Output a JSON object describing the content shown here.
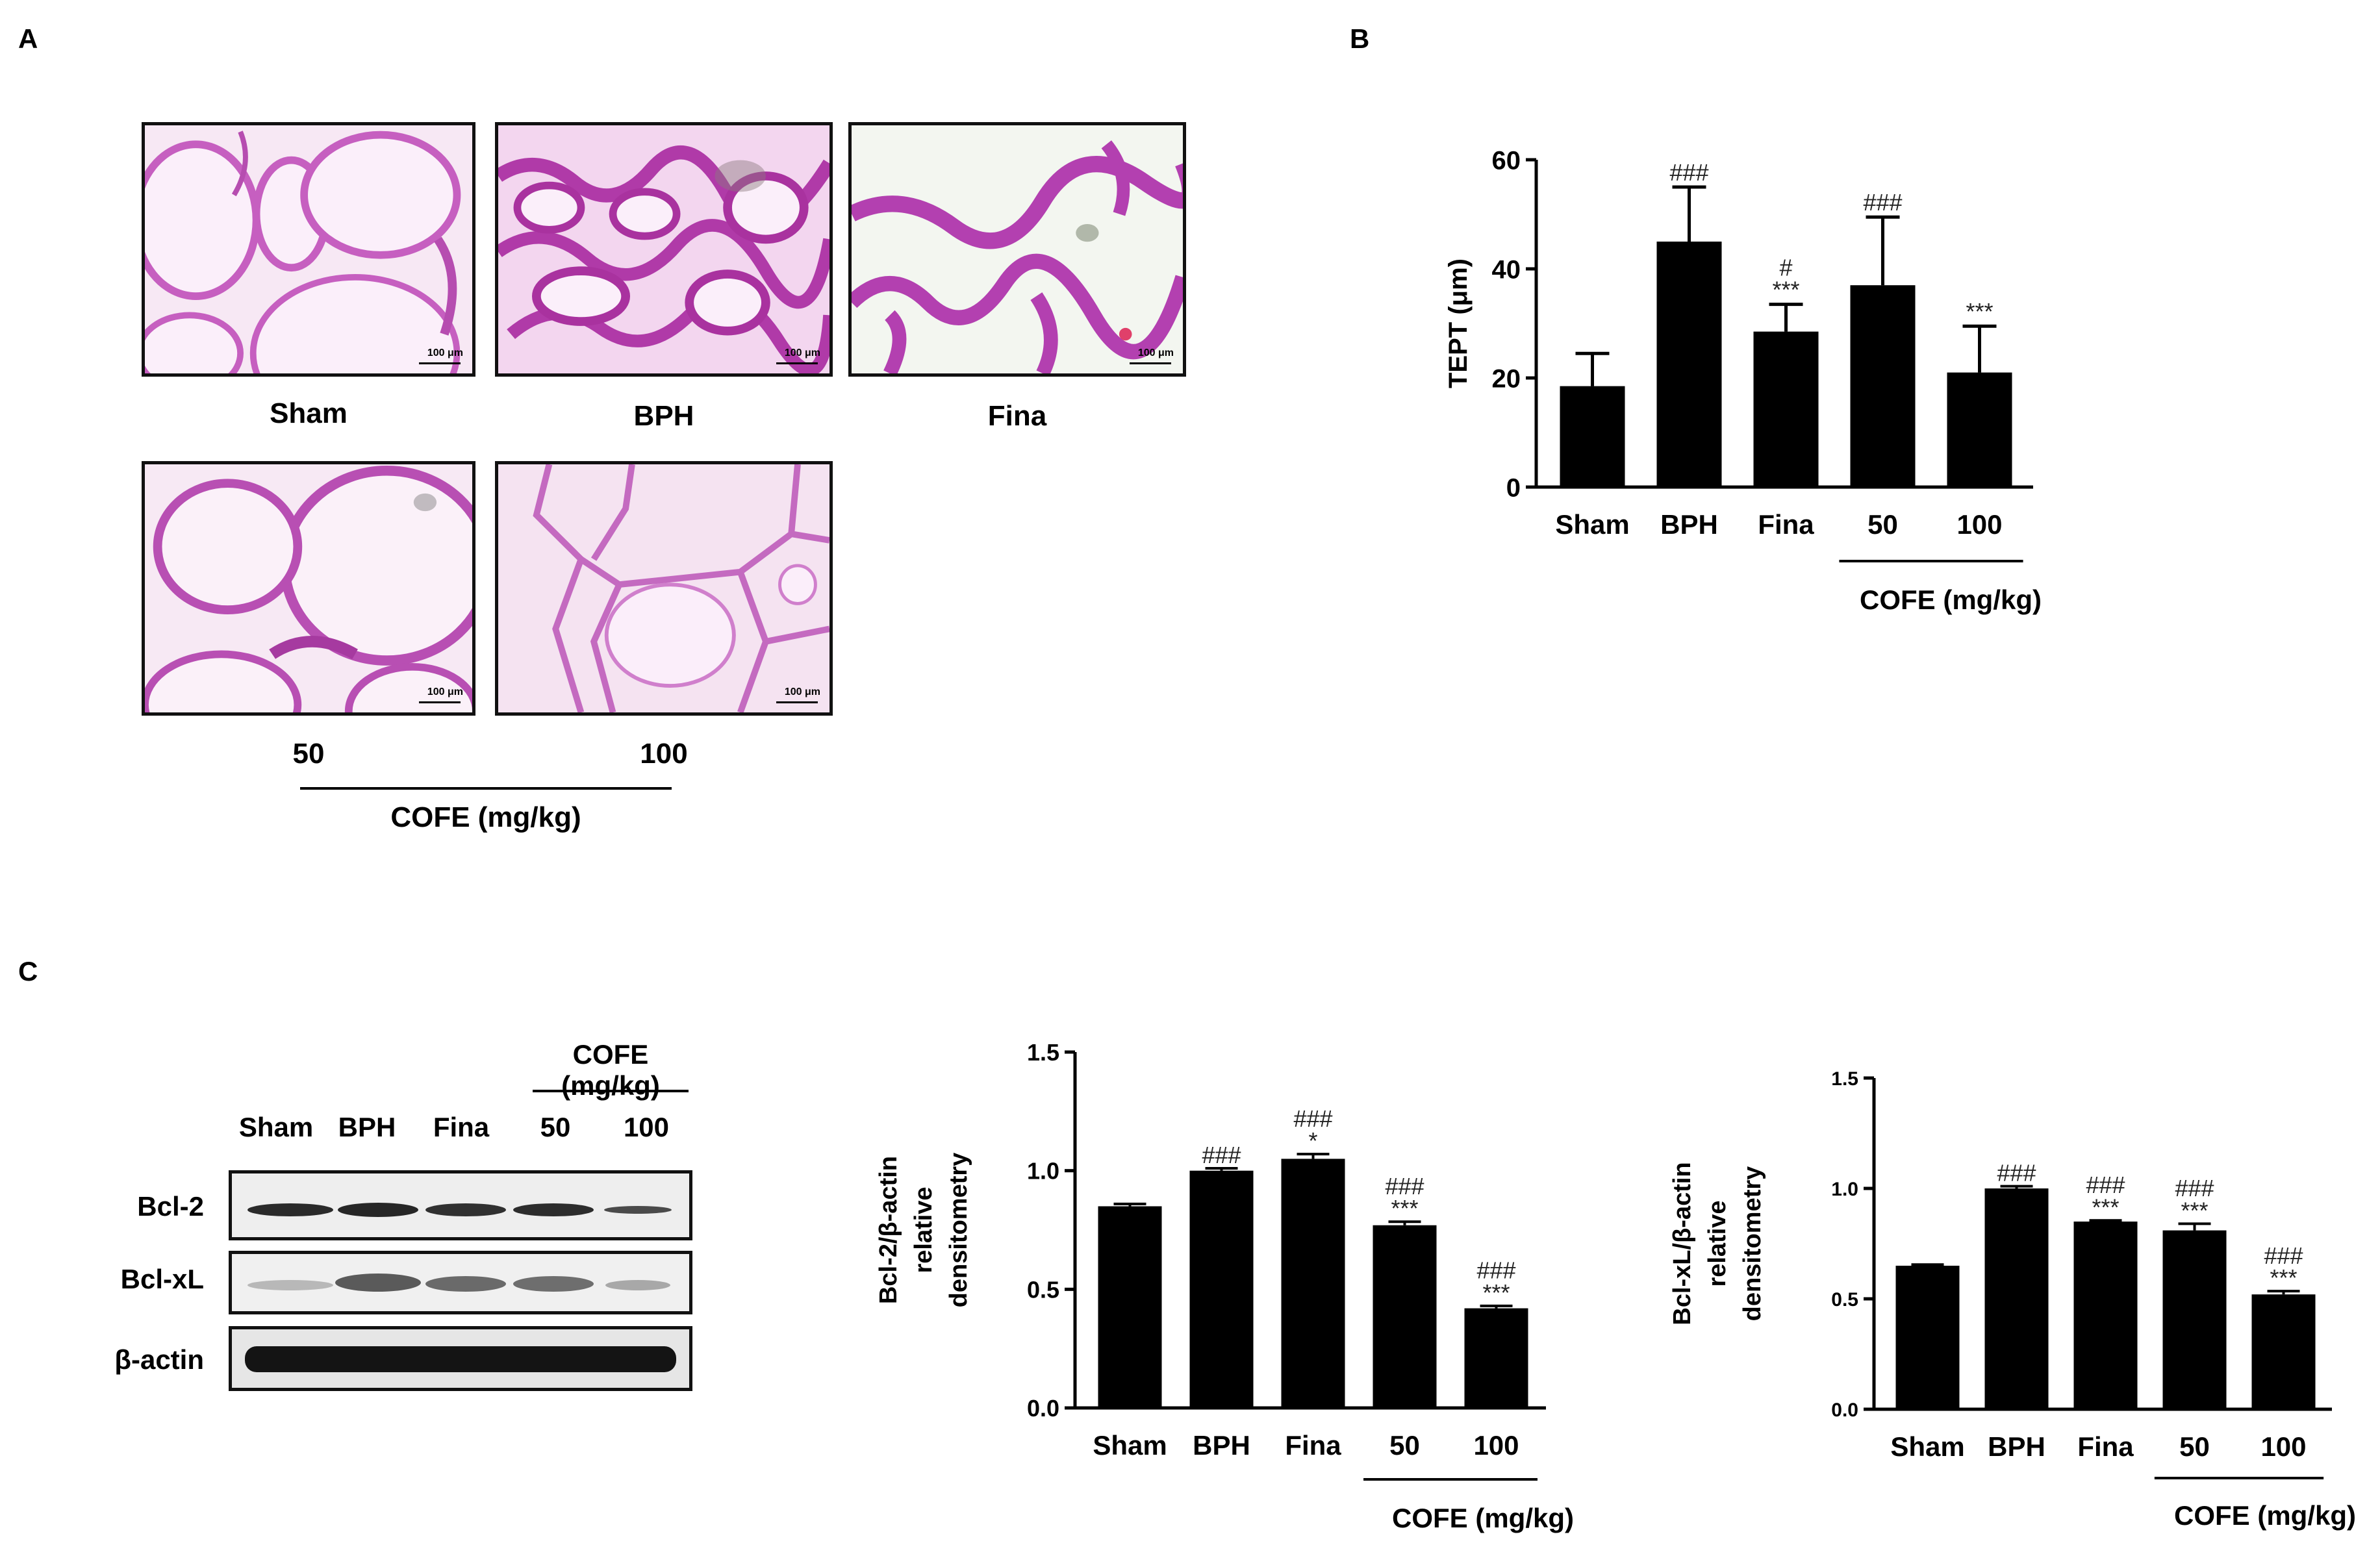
{
  "panels": {
    "a": "A",
    "b": "B",
    "c": "C"
  },
  "panel_a": {
    "images": [
      {
        "label": "Sham",
        "scale": "100 μm"
      },
      {
        "label": "BPH",
        "scale": "100 μm"
      },
      {
        "label": "Fina",
        "scale": "100 μm"
      },
      {
        "label": "50",
        "scale": "100 μm"
      },
      {
        "label": "100",
        "scale": "100 μm"
      }
    ],
    "group_label": "COFE (mg/kg)"
  },
  "blot": {
    "group_label": "COFE (mg/kg)",
    "lanes": [
      "Sham",
      "BPH",
      "Fina",
      "50",
      "100"
    ],
    "rows": [
      "Bcl-2",
      "Bcl-xL",
      "β-actin"
    ]
  },
  "chart_data": [
    {
      "type": "bar",
      "panel": "B",
      "categories": [
        "Sham",
        "BPH",
        "Fina",
        "50",
        "100"
      ],
      "values": [
        18.5,
        45,
        28.5,
        37,
        21
      ],
      "errors": [
        6,
        10,
        5,
        12.5,
        8.5
      ],
      "annotations": [
        [],
        [
          "###"
        ],
        [
          "#",
          "***"
        ],
        [
          "###"
        ],
        [
          "***"
        ]
      ],
      "ylabel": "TEPT (μm)",
      "xlabel": "",
      "group_label": "COFE (mg/kg)",
      "ylim": [
        0,
        60
      ],
      "yticks": [
        "0",
        "20",
        "40",
        "60"
      ],
      "grid": false
    },
    {
      "type": "bar",
      "panel": "C-left",
      "categories": [
        "Sham",
        "BPH",
        "Fina",
        "50",
        "100"
      ],
      "values": [
        0.85,
        1.0,
        1.05,
        0.77,
        0.42
      ],
      "errors": [
        0.01,
        0.01,
        0.02,
        0.015,
        0.01
      ],
      "annotations": [
        [],
        [
          "###"
        ],
        [
          "###",
          "*"
        ],
        [
          "###",
          "***"
        ],
        [
          "###",
          "***"
        ]
      ],
      "ylabel_lines": [
        "Bcl-2/β-actin",
        "relative",
        "densitometry"
      ],
      "xlabel": "",
      "group_label": "COFE (mg/kg)",
      "ylim": [
        0,
        1.5
      ],
      "yticks": [
        "0.0",
        "0.5",
        "1.0",
        "1.5"
      ],
      "grid": false
    },
    {
      "type": "bar",
      "panel": "C-right",
      "categories": [
        "Sham",
        "BPH",
        "Fina",
        "50",
        "100"
      ],
      "values": [
        0.65,
        1.0,
        0.85,
        0.81,
        0.52
      ],
      "errors": [
        0.005,
        0.01,
        0.005,
        0.03,
        0.015
      ],
      "annotations": [
        [],
        [
          "###"
        ],
        [
          "###",
          "***"
        ],
        [
          "###",
          "***"
        ],
        [
          "###",
          "***"
        ]
      ],
      "ylabel_lines": [
        "Bcl-xL/β-actin",
        "relative",
        "densitometry"
      ],
      "xlabel": "",
      "group_label": "COFE (mg/kg)",
      "ylim": [
        0,
        1.5
      ],
      "yticks": [
        "0.0",
        "0.5",
        "1.0",
        "1.5"
      ],
      "grid": false
    }
  ]
}
